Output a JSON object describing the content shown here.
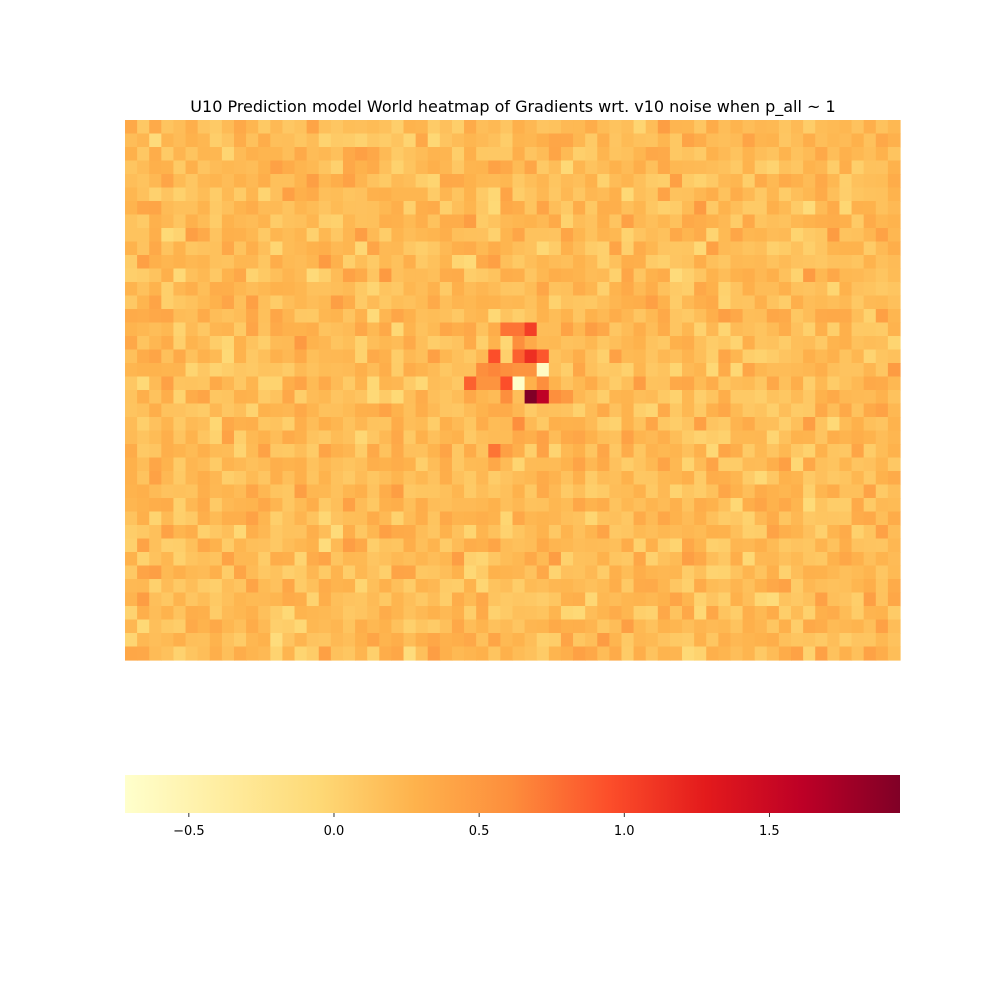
{
  "chart_data": {
    "type": "heatmap",
    "title": "U10 Prediction model World heatmap of Gradients wrt. v10 noise when p_all ~ 1",
    "xlabel": "",
    "ylabel": "",
    "colormap": "YlOrRd",
    "color_stops": [
      "#ffffcc",
      "#ffeda0",
      "#fed976",
      "#feb24c",
      "#fd8d3c",
      "#fc4e2a",
      "#e31a1c",
      "#bd0026",
      "#800026"
    ],
    "vmin": -0.72,
    "vmax": 1.95,
    "background_value": 0.2,
    "n_rows": 40,
    "n_cols": 64,
    "hotspot_cells": [
      {
        "row": 15,
        "col": 31,
        "value": 0.75
      },
      {
        "row": 15,
        "col": 32,
        "value": 0.75
      },
      {
        "row": 15,
        "col": 33,
        "value": 1.05
      },
      {
        "row": 16,
        "col": 32,
        "value": 0.6
      },
      {
        "row": 17,
        "col": 30,
        "value": 0.95
      },
      {
        "row": 17,
        "col": 32,
        "value": 0.85
      },
      {
        "row": 17,
        "col": 33,
        "value": 1.15
      },
      {
        "row": 17,
        "col": 34,
        "value": 0.9
      },
      {
        "row": 18,
        "col": 29,
        "value": 0.6
      },
      {
        "row": 18,
        "col": 30,
        "value": 0.65
      },
      {
        "row": 18,
        "col": 31,
        "value": 0.6
      },
      {
        "row": 18,
        "col": 32,
        "value": 0.55
      },
      {
        "row": 18,
        "col": 33,
        "value": 0.55
      },
      {
        "row": 18,
        "col": 34,
        "value": -0.65
      },
      {
        "row": 19,
        "col": 28,
        "value": 0.85
      },
      {
        "row": 19,
        "col": 29,
        "value": 0.55
      },
      {
        "row": 19,
        "col": 30,
        "value": 0.55
      },
      {
        "row": 19,
        "col": 31,
        "value": 0.95
      },
      {
        "row": 19,
        "col": 32,
        "value": -0.7
      },
      {
        "row": 19,
        "col": 34,
        "value": 0.6
      },
      {
        "row": 20,
        "col": 31,
        "value": 0.6
      },
      {
        "row": 20,
        "col": 33,
        "value": 1.95
      },
      {
        "row": 20,
        "col": 34,
        "value": 1.6
      },
      {
        "row": 20,
        "col": 35,
        "value": 0.6
      },
      {
        "row": 20,
        "col": 36,
        "value": 0.5
      },
      {
        "row": 22,
        "col": 32,
        "value": 0.6
      },
      {
        "row": 24,
        "col": 30,
        "value": 0.75
      }
    ],
    "colorbar": {
      "orientation": "horizontal",
      "ticks": [
        -0.5,
        0.0,
        0.5,
        1.0,
        1.5
      ],
      "tick_labels": [
        "−0.5",
        "0.0",
        "0.5",
        "1.0",
        "1.5"
      ]
    }
  }
}
